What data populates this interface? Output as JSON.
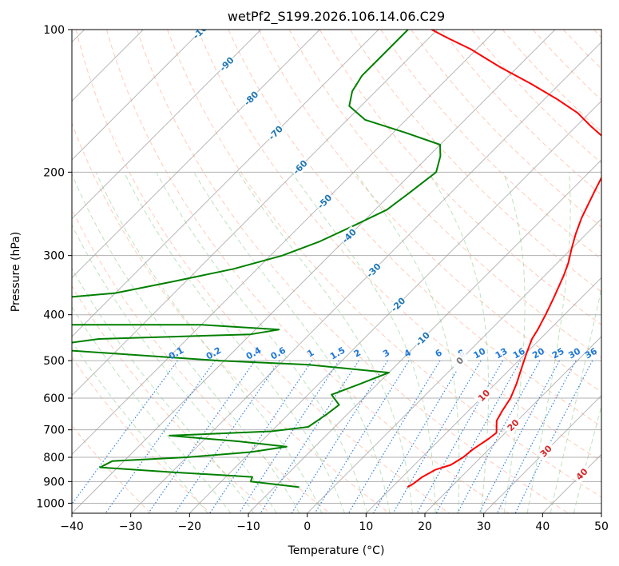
{
  "chart_data": {
    "type": "line",
    "title": "wetPf2_S199.2026.106.14.06.C29",
    "xlabel": "Temperature (°C)",
    "ylabel": "Pressure (hPa)",
    "xlim": [
      -40,
      50
    ],
    "ylim": [
      1050,
      100
    ],
    "xticks": [
      "-40",
      "-30",
      "-20",
      "-10",
      "0",
      "10",
      "20",
      "30",
      "40",
      "50"
    ],
    "yticks": [
      "100",
      "200",
      "300",
      "400",
      "500",
      "600",
      "700",
      "800",
      "900",
      "1000"
    ],
    "series": [
      {
        "name": "temperature",
        "color": "#ff0000",
        "points": [
          [
            12.6,
            925
          ],
          [
            13.0,
            910
          ],
          [
            13.4,
            880
          ],
          [
            14.4,
            850
          ],
          [
            16.2,
            830
          ],
          [
            17.0,
            800
          ],
          [
            17.3,
            770
          ],
          [
            18.2,
            730
          ],
          [
            18.5,
            710
          ],
          [
            16.5,
            670
          ],
          [
            15.8,
            640
          ],
          [
            15.0,
            600
          ],
          [
            13.6,
            560
          ],
          [
            12.3,
            530
          ],
          [
            10.0,
            480
          ],
          [
            8.6,
            450
          ],
          [
            8.0,
            430
          ],
          [
            6.8,
            400
          ],
          [
            5.4,
            370
          ],
          [
            3.2,
            330
          ],
          [
            1.8,
            310
          ],
          [
            0.0,
            290
          ],
          [
            -1.8,
            270
          ],
          [
            -3.5,
            250
          ],
          [
            -5.8,
            220
          ],
          [
            -7.0,
            205
          ],
          [
            -9.0,
            190
          ],
          [
            -10.3,
            180
          ],
          [
            -13.0,
            170
          ],
          [
            -17.5,
            160
          ],
          [
            -22.0,
            150
          ],
          [
            -28.0,
            140
          ],
          [
            -35.0,
            130
          ],
          [
            -43.0,
            120
          ],
          [
            -51.0,
            110
          ],
          [
            -57.0,
            104
          ],
          [
            -61.0,
            100
          ]
        ]
      },
      {
        "name": "dewpoint",
        "color": "#008000",
        "points": [
          [
            -5.8,
            925
          ],
          [
            -15.0,
            900
          ],
          [
            -15.5,
            880
          ],
          [
            -30.0,
            860
          ],
          [
            -43.0,
            840
          ],
          [
            -42.0,
            815
          ],
          [
            -30.0,
            800
          ],
          [
            -20.0,
            780
          ],
          [
            -14.8,
            760
          ],
          [
            -24.0,
            740
          ],
          [
            -36.6,
            720
          ],
          [
            -20.0,
            705
          ],
          [
            -14.5,
            690
          ],
          [
            -13.5,
            650
          ],
          [
            -13.0,
            620
          ],
          [
            -16.0,
            590
          ],
          [
            -13.0,
            560
          ],
          [
            -10.0,
            530
          ],
          [
            -25.0,
            510
          ],
          [
            -41.0,
            500
          ],
          [
            -75.0,
            470
          ],
          [
            -65.0,
            450
          ],
          [
            -40.0,
            440
          ],
          [
            -36.0,
            430
          ],
          [
            -50.0,
            420
          ],
          [
            -72.0,
            420
          ],
          [
            -80.0,
            370
          ],
          [
            -70.0,
            360
          ],
          [
            -62.0,
            340
          ],
          [
            -54.0,
            320
          ],
          [
            -48.0,
            300
          ],
          [
            -44.0,
            280
          ],
          [
            -41.0,
            260
          ],
          [
            -38.0,
            240
          ],
          [
            -37.0,
            220
          ],
          [
            -36.0,
            200
          ],
          [
            -38.0,
            185
          ],
          [
            -40.0,
            175
          ],
          [
            -48.0,
            165
          ],
          [
            -57.0,
            155
          ],
          [
            -62.0,
            145
          ],
          [
            -64.0,
            135
          ],
          [
            -65.0,
            125
          ],
          [
            -65.0,
            115
          ],
          [
            -65.0,
            100
          ]
        ]
      }
    ],
    "isotherm_labels": [
      "-100",
      "-90",
      "-80",
      "-70",
      "-60",
      "-50",
      "-40",
      "-30",
      "-20",
      "-10",
      "0",
      "10",
      "20",
      "30",
      "40"
    ],
    "mixing_ratio_labels": [
      "0.1",
      "0.2",
      "0.4",
      "0.6",
      "1",
      "1.5",
      "2",
      "3",
      "4",
      "6",
      "8",
      "10",
      "13",
      "16",
      "20",
      "25",
      "30",
      "36"
    ],
    "grid": true,
    "colors": {
      "isotherm": "#999999",
      "dry_adiabat": "#ff8c64",
      "moist_adiabat": "#6cbf6c",
      "mixing_ratio": "#1f78d8",
      "isotherm_label_neg": "#1f77b4",
      "isotherm_label_pos": "#d62728"
    }
  }
}
